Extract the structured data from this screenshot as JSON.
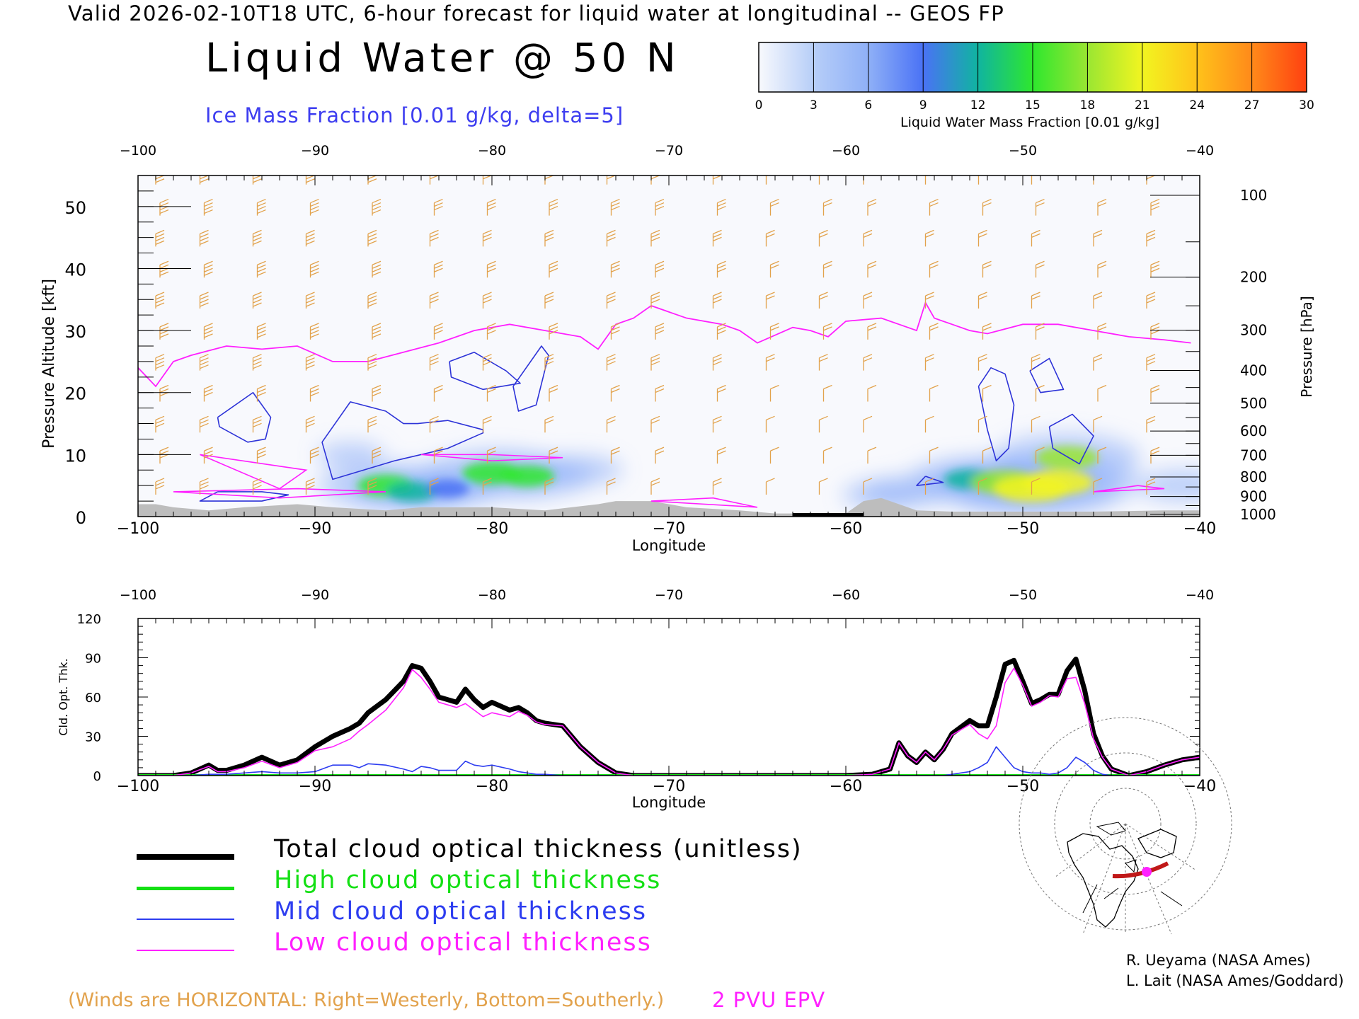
{
  "header": {
    "valid_line": "Valid 2026-02-10T18 UTC, 6-hour forecast for liquid water at longitudinal -- GEOS FP",
    "title": "Liquid Water @ 50 N",
    "ice_label": "Ice Mass Fraction [0.01 g/kg, delta=5]"
  },
  "colorbar": {
    "label": "Liquid Water Mass Fraction [0.01 g/kg]",
    "ticks": [
      "0",
      "3",
      "6",
      "9",
      "12",
      "15",
      "18",
      "21",
      "24",
      "27",
      "30"
    ],
    "colors": [
      "#f8f9fd",
      "#b7cef8",
      "#8fb0f7",
      "#4a72f5",
      "#10b4a0",
      "#2ee72e",
      "#9ae632",
      "#f2f520",
      "#ffc21a",
      "#ff8a1a",
      "#ff4010"
    ]
  },
  "colors": {
    "ice": "#2d33d8",
    "tropopause": "#ff20ff",
    "wind": "#e2a24c",
    "terrain": "#bdbdbd",
    "total": "#000000",
    "high": "#14e014",
    "mid": "#2d3df0",
    "low": "#ff20ff"
  },
  "chart_data": [
    {
      "type": "heatmap",
      "title": "Liquid Water @ 50 N",
      "xlabel": "Longitude",
      "ylabel": "Pressure Altitude [kft]",
      "y2label": "Pressure [hPa]",
      "xlim": [
        -100,
        -40
      ],
      "ylim": [
        0,
        55
      ],
      "x_ticks": [
        "−100",
        "−90",
        "−80",
        "−70",
        "−60",
        "−50",
        "−40"
      ],
      "y_ticks": [
        "0",
        "10",
        "20",
        "30",
        "40",
        "50"
      ],
      "pressure_ticks": [
        "100",
        "200",
        "300",
        "400",
        "500",
        "600",
        "700",
        "800",
        "900",
        "1000"
      ],
      "liquid_water_blobs": [
        {
          "lon": -86,
          "alt": 5,
          "value": 15
        },
        {
          "lon": -84.5,
          "alt": 4,
          "value": 13
        },
        {
          "lon": -82.5,
          "alt": 4.5,
          "value": 10
        },
        {
          "lon": -80,
          "alt": 7,
          "value": 16
        },
        {
          "lon": -78,
          "alt": 6.5,
          "value": 14
        },
        {
          "lon": -75,
          "alt": 7.5,
          "value": 6
        },
        {
          "lon": -88,
          "alt": 10,
          "value": 3
        },
        {
          "lon": -53,
          "alt": 6,
          "value": 13
        },
        {
          "lon": -51,
          "alt": 5.5,
          "value": 19
        },
        {
          "lon": -49.5,
          "alt": 4.5,
          "value": 22
        },
        {
          "lon": -48,
          "alt": 5.5,
          "value": 20
        },
        {
          "lon": -47.5,
          "alt": 9.5,
          "value": 17
        },
        {
          "lon": -56.5,
          "alt": 4,
          "value": 7
        },
        {
          "lon": -58,
          "alt": 3.5,
          "value": 5
        },
        {
          "lon": -41,
          "alt": 5,
          "value": 7
        }
      ],
      "tropopause_2pvu": {
        "lon": [
          -100,
          -99,
          -98,
          -97,
          -95,
          -93,
          -91,
          -89,
          -87,
          -85,
          -83,
          -81,
          -79,
          -77,
          -75,
          -74,
          -73,
          -72,
          -71,
          -69,
          -67,
          -66,
          -65,
          -63,
          -62,
          -61,
          -60,
          -58,
          -57,
          -56,
          -55.5,
          -55,
          -54,
          -53,
          -52,
          -50,
          -48,
          -46,
          -44,
          -42,
          -40.5
        ],
        "alt": [
          24,
          21,
          25,
          26,
          27.5,
          27,
          27.5,
          25,
          25,
          26.5,
          28,
          30,
          31,
          30,
          29,
          27,
          31,
          32,
          34,
          32,
          31,
          30,
          28,
          30.5,
          30,
          29,
          31.5,
          32,
          31,
          30,
          34.5,
          32,
          31,
          30,
          29.5,
          31,
          31,
          30,
          29,
          28.5,
          28
        ]
      },
      "terrain": {
        "lon": [
          -100,
          -99,
          -98,
          -96,
          -94,
          -91,
          -89,
          -86,
          -84,
          -80,
          -77,
          -74,
          -73,
          -71,
          -69,
          -66,
          -64,
          -62,
          -60,
          -59,
          -58,
          -56,
          -54,
          -50,
          -46,
          -42,
          -40
        ],
        "alt": [
          2,
          2,
          1.5,
          1,
          1.5,
          2,
          1.5,
          1,
          1.5,
          1.5,
          1,
          2,
          2.5,
          2.5,
          1.5,
          1,
          0.5,
          0.5,
          0.5,
          2.5,
          3,
          1,
          0.8,
          0.8,
          0.8,
          1,
          1
        ]
      },
      "ice_contours": [
        {
          "lon": [
            -95.5,
            -93.5,
            -92.5,
            -92.8,
            -93.8,
            -95.4,
            -95.5
          ],
          "alt": [
            16,
            20,
            16,
            12.5,
            12,
            14.5,
            16
          ]
        },
        {
          "lon": [
            -89.6,
            -88,
            -86,
            -85,
            -84.2,
            -82.5,
            -80.5,
            -80.5,
            -82.5,
            -85.5,
            -89,
            -89.6
          ],
          "alt": [
            12,
            18.5,
            17,
            15,
            15,
            15.5,
            14,
            13.5,
            11,
            9,
            6,
            12
          ]
        },
        {
          "lon": [
            -82.4,
            -81,
            -79.2,
            -78.4,
            -80.5,
            -82.3,
            -82.4
          ],
          "alt": [
            25,
            26.5,
            23.5,
            21.5,
            20.5,
            22.5,
            25
          ]
        },
        {
          "lon": [
            -78.8,
            -77.2,
            -76.8,
            -77.5,
            -78.5,
            -78.8
          ],
          "alt": [
            21,
            27.5,
            26,
            18,
            17,
            21
          ]
        },
        {
          "lon": [
            -95.5,
            -93,
            -91.5,
            -93,
            -96.5,
            -95.5
          ],
          "alt": [
            4,
            4,
            3.5,
            2.5,
            2.5,
            4
          ]
        },
        {
          "lon": [
            -52.5,
            -51.8,
            -51,
            -50.5,
            -50.8,
            -51.5,
            -52,
            -52.5
          ],
          "alt": [
            21,
            24,
            23,
            18,
            11,
            9,
            14,
            21
          ]
        },
        {
          "lon": [
            -49.6,
            -48.5,
            -47.7,
            -49,
            -49.6
          ],
          "alt": [
            23.5,
            25.5,
            20.5,
            20,
            23.5
          ]
        },
        {
          "lon": [
            -48.5,
            -47.2,
            -46,
            -46.8,
            -48.3,
            -48.5
          ],
          "alt": [
            14.5,
            16.5,
            13,
            8.5,
            11,
            14.5
          ]
        },
        {
          "lon": [
            -55.5,
            -54.5,
            -56,
            -55.5
          ],
          "alt": [
            6.5,
            5.5,
            5,
            6.5
          ]
        }
      ],
      "low_cloud_contours": [
        {
          "lon": [
            -96.5,
            -90.5,
            -92,
            -96.5
          ],
          "alt": [
            10,
            7.5,
            4.5,
            10
          ]
        },
        {
          "lon": [
            -98,
            -91,
            -86,
            -92,
            -98
          ],
          "alt": [
            4,
            4.5,
            4,
            3,
            4
          ]
        },
        {
          "lon": [
            -84,
            -80,
            -76,
            -80,
            -84
          ],
          "alt": [
            10,
            10,
            9.5,
            9,
            10
          ]
        },
        {
          "lon": [
            -71,
            -65,
            -67.5,
            -71
          ],
          "alt": [
            2.5,
            1.5,
            3,
            2.5
          ]
        },
        {
          "lon": [
            -46,
            -42,
            -43.5,
            -46
          ],
          "alt": [
            4,
            4.5,
            5,
            4
          ]
        }
      ],
      "winds": {
        "note": "(Winds are HORIZONTAL: Right=Westerly, Bottom=Southerly.)",
        "lon": [
          -99,
          -96.5,
          -93.5,
          -90.5,
          -87,
          -83.5,
          -80.5,
          -77,
          -73.5,
          -71,
          -67.5,
          -64.5,
          -61.5,
          -59,
          -55.5,
          -52.5,
          -49.5,
          -46,
          -43
        ],
        "alt": [
          54,
          49,
          44,
          39,
          34,
          29,
          24,
          19,
          14,
          9,
          4
        ],
        "barbs": [
          4,
          4,
          4,
          4,
          4,
          3,
          3,
          3,
          3,
          3,
          3,
          2,
          2,
          2,
          2,
          2,
          2,
          2,
          3
        ]
      }
    },
    {
      "type": "line",
      "xlabel": "Longitude",
      "ylabel": "Cld. Opt. Thk.",
      "xlim": [
        -100,
        -40
      ],
      "ylim": [
        0,
        120
      ],
      "x_ticks": [
        "−100",
        "−90",
        "−80",
        "−70",
        "−60",
        "−50",
        "−40"
      ],
      "y_ticks": [
        "0",
        "30",
        "60",
        "90",
        "120"
      ],
      "x": [
        -100,
        -99,
        -98,
        -97,
        -96,
        -95.5,
        -95,
        -94,
        -93,
        -92,
        -91,
        -90,
        -89,
        -88,
        -87.5,
        -87,
        -86,
        -85,
        -84.5,
        -84,
        -83.5,
        -83,
        -82,
        -81.5,
        -81,
        -80.5,
        -80,
        -79,
        -78.5,
        -78,
        -77.5,
        -77,
        -76,
        -75,
        -74,
        -73,
        -72,
        -70,
        -68,
        -65,
        -62,
        -60,
        -58.5,
        -57.5,
        -57,
        -56.5,
        -56,
        -55.5,
        -55,
        -54.5,
        -54,
        -53,
        -52.5,
        -52,
        -51.5,
        -51,
        -50.5,
        -50,
        -49.5,
        -49,
        -48.5,
        -48,
        -47.5,
        -47,
        -46.5,
        -46,
        -45.5,
        -45,
        -44,
        -43,
        -42,
        -41,
        -40
      ],
      "series": [
        {
          "name": "Total cloud optical thickness (unitless)",
          "values": [
            0,
            0,
            0,
            2,
            8,
            4,
            4,
            8,
            14,
            8,
            12,
            22,
            30,
            36,
            40,
            48,
            58,
            72,
            84,
            82,
            72,
            60,
            56,
            66,
            58,
            52,
            56,
            50,
            52,
            48,
            42,
            40,
            38,
            22,
            10,
            2,
            0,
            0,
            0,
            0,
            0,
            0,
            1,
            5,
            25,
            15,
            10,
            18,
            12,
            20,
            32,
            42,
            38,
            38,
            60,
            85,
            88,
            72,
            55,
            58,
            62,
            62,
            80,
            89,
            65,
            32,
            15,
            5,
            0,
            3,
            8,
            12,
            14
          ]
        },
        {
          "name": "High cloud optical thickness",
          "values": [
            0,
            0,
            0,
            0,
            0,
            0,
            0,
            0,
            0,
            0,
            0,
            0,
            0,
            0,
            0,
            0,
            0,
            0,
            0,
            0,
            0,
            0,
            0,
            0,
            0,
            0,
            0,
            0,
            0,
            0,
            0,
            0,
            0,
            0,
            0,
            0,
            0,
            0,
            0,
            0,
            0,
            0,
            0,
            0,
            0,
            0,
            0,
            0,
            0,
            0,
            0,
            0,
            0,
            0,
            0,
            0,
            0,
            0,
            0,
            0,
            0,
            0,
            0,
            0,
            0,
            0,
            0,
            0,
            0,
            0,
            0,
            0,
            0
          ]
        },
        {
          "name": "Mid cloud optical thickness",
          "values": [
            0,
            0,
            0,
            0,
            1,
            1,
            1,
            2,
            3,
            2,
            2,
            3,
            8,
            8,
            6,
            9,
            8,
            5,
            3,
            7,
            6,
            4,
            4,
            11,
            8,
            7,
            8,
            5,
            3,
            2,
            1,
            1,
            0,
            0,
            0,
            0,
            0,
            0,
            0,
            0,
            0,
            0,
            0,
            0,
            0,
            0,
            0,
            0,
            0,
            0,
            1,
            3,
            6,
            10,
            22,
            14,
            6,
            3,
            2,
            2,
            1,
            2,
            6,
            14,
            10,
            4,
            1,
            0,
            0,
            0,
            0,
            0,
            0
          ]
        },
        {
          "name": "Low cloud optical thickness",
          "values": [
            0,
            0,
            0,
            2,
            7,
            3,
            3,
            6,
            11,
            6,
            10,
            19,
            22,
            28,
            34,
            39,
            50,
            67,
            81,
            75,
            66,
            56,
            52,
            55,
            50,
            45,
            48,
            45,
            49,
            46,
            41,
            39,
            38,
            22,
            10,
            2,
            0,
            0,
            0,
            0,
            0,
            0,
            1,
            5,
            25,
            15,
            10,
            18,
            12,
            20,
            31,
            39,
            32,
            28,
            38,
            71,
            82,
            69,
            53,
            56,
            61,
            60,
            74,
            75,
            55,
            28,
            14,
            5,
            0,
            3,
            8,
            12,
            14
          ]
        }
      ]
    }
  ],
  "legend": {
    "total": "Total cloud optical thickness (unitless)",
    "high": "High cloud optical thickness",
    "mid": "Mid cloud optical thickness",
    "low": "Low cloud optical thickness"
  },
  "footer": {
    "winds_note": "(Winds are HORIZONTAL: Right=Westerly, Bottom=Southerly.)",
    "pvu_label": "2 PVU EPV",
    "credit_1": "R. Ueyama (NASA Ames)",
    "credit_2": "L. Lait (NASA Ames/Goddard)"
  }
}
